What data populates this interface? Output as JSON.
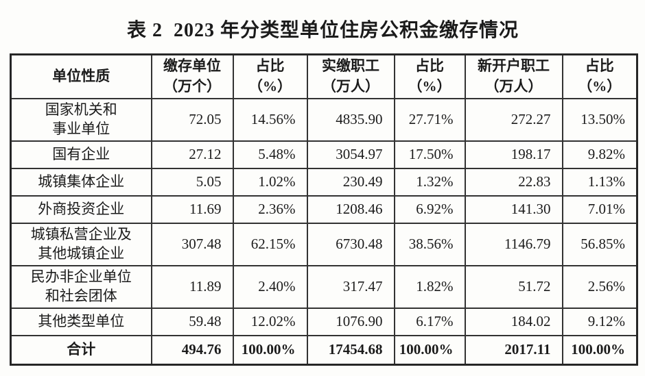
{
  "page": {
    "title": "表 2  2023 年分类型单位住房公积金缴存情况"
  },
  "table": {
    "columns": [
      {
        "label": "单位性质",
        "unit": ""
      },
      {
        "label": "缴存单位",
        "unit": "（万个）"
      },
      {
        "label": "占比",
        "unit": "（%）"
      },
      {
        "label": "实缴职工",
        "unit": "（万人）"
      },
      {
        "label": "占比",
        "unit": "（%）"
      },
      {
        "label": "新开户职工",
        "unit": "（万人）"
      },
      {
        "label": "占比",
        "unit": "（%）"
      }
    ],
    "rows": [
      {
        "label": "国家机关和\n事业单位",
        "values": [
          "72.05",
          "14.56%",
          "4835.90",
          "27.71%",
          "272.27",
          "13.50%"
        ]
      },
      {
        "label": "国有企业",
        "values": [
          "27.12",
          "5.48%",
          "3054.97",
          "17.50%",
          "198.17",
          "9.82%"
        ]
      },
      {
        "label": "城镇集体企业",
        "values": [
          "5.05",
          "1.02%",
          "230.49",
          "1.32%",
          "22.83",
          "1.13%"
        ]
      },
      {
        "label": "外商投资企业",
        "values": [
          "11.69",
          "2.36%",
          "1208.46",
          "6.92%",
          "141.30",
          "7.01%"
        ]
      },
      {
        "label": "城镇私营企业及\n其他城镇企业",
        "values": [
          "307.48",
          "62.15%",
          "6730.48",
          "38.56%",
          "1146.79",
          "56.85%"
        ]
      },
      {
        "label": "民办非企业单位\n和社会团体",
        "values": [
          "11.89",
          "2.40%",
          "317.47",
          "1.82%",
          "51.72",
          "2.56%"
        ]
      },
      {
        "label": "其他类型单位",
        "values": [
          "59.48",
          "12.02%",
          "1076.90",
          "6.17%",
          "184.02",
          "9.12%"
        ]
      }
    ],
    "total": {
      "label": "合计",
      "values": [
        "494.76",
        "100.00%",
        "17454.68",
        "100.00%",
        "2017.11",
        "100.00%"
      ]
    }
  }
}
